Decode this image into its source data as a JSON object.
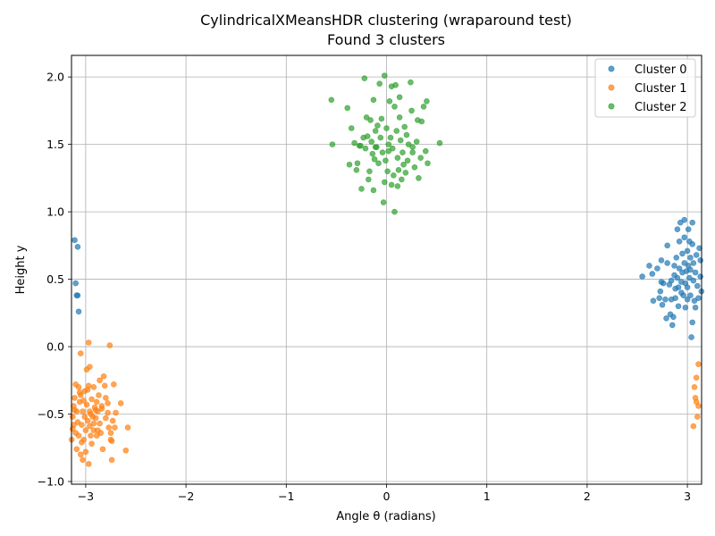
{
  "chart_data": {
    "type": "scatter",
    "title": "CylindricalXMeansHDR clustering (wraparound test)",
    "subtitle": "Found 3 clusters",
    "xlabel": "Angle θ (radians)",
    "ylabel": "Height y",
    "xlim": [
      -3.14159,
      3.14159
    ],
    "ylim": [
      -1.02,
      2.16
    ],
    "xticks": [
      -3,
      -2,
      -1,
      0,
      1,
      2,
      3
    ],
    "yticks": [
      -1.0,
      -0.5,
      0.0,
      0.5,
      1.0,
      1.5,
      2.0
    ],
    "xtick_labels": [
      "−3",
      "−2",
      "−1",
      "0",
      "1",
      "2",
      "3"
    ],
    "ytick_labels": [
      "−1.0",
      "−0.5",
      "0.0",
      "0.5",
      "1.0",
      "1.5",
      "2.0"
    ],
    "grid": true,
    "legend_position": "top-right",
    "series": [
      {
        "name": "Cluster 0",
        "color": "#1f77b4",
        "points": [
          [
            2.55,
            0.52
          ],
          [
            2.62,
            0.6
          ],
          [
            2.65,
            0.54
          ],
          [
            2.66,
            0.34
          ],
          [
            2.7,
            0.58
          ],
          [
            2.72,
            0.36
          ],
          [
            2.73,
            0.41
          ],
          [
            2.74,
            0.64
          ],
          [
            2.74,
            0.48
          ],
          [
            2.75,
            0.31
          ],
          [
            2.76,
            0.47
          ],
          [
            2.78,
            0.35
          ],
          [
            2.79,
            0.21
          ],
          [
            2.8,
            0.62
          ],
          [
            2.8,
            0.75
          ],
          [
            2.82,
            0.46
          ],
          [
            2.83,
            0.24
          ],
          [
            2.84,
            0.49
          ],
          [
            2.84,
            0.35
          ],
          [
            2.85,
            0.16
          ],
          [
            2.86,
            0.22
          ],
          [
            2.87,
            0.53
          ],
          [
            2.87,
            0.6
          ],
          [
            2.88,
            0.43
          ],
          [
            2.88,
            0.36
          ],
          [
            2.89,
            0.66
          ],
          [
            2.9,
            0.87
          ],
          [
            2.9,
            0.51
          ],
          [
            2.91,
            0.44
          ],
          [
            2.91,
            0.3
          ],
          [
            2.92,
            0.78
          ],
          [
            2.92,
            0.58
          ],
          [
            2.93,
            0.92
          ],
          [
            2.94,
            0.48
          ],
          [
            2.94,
            0.4
          ],
          [
            2.95,
            0.69
          ],
          [
            2.95,
            0.55
          ],
          [
            2.96,
            0.38
          ],
          [
            2.97,
            0.81
          ],
          [
            2.97,
            0.62
          ],
          [
            2.97,
            0.94
          ],
          [
            2.98,
            0.47
          ],
          [
            2.98,
            0.29
          ],
          [
            2.99,
            0.56
          ],
          [
            3.0,
            0.71
          ],
          [
            3.0,
            0.44
          ],
          [
            3.0,
            0.35
          ],
          [
            3.01,
            0.87
          ],
          [
            3.01,
            0.6
          ],
          [
            3.02,
            0.51
          ],
          [
            3.02,
            0.78
          ],
          [
            3.03,
            0.66
          ],
          [
            3.03,
            0.57
          ],
          [
            3.03,
            0.38
          ],
          [
            3.04,
            0.07
          ],
          [
            3.05,
            0.92
          ],
          [
            3.05,
            0.18
          ],
          [
            3.05,
            0.76
          ],
          [
            3.06,
            0.49
          ],
          [
            3.06,
            0.62
          ],
          [
            3.07,
            0.34
          ],
          [
            3.08,
            0.29
          ],
          [
            3.08,
            0.55
          ],
          [
            3.09,
            0.68
          ],
          [
            3.1,
            0.45
          ],
          [
            3.11,
            0.36
          ],
          [
            3.12,
            0.73
          ],
          [
            3.13,
            0.64
          ],
          [
            3.13,
            0.52
          ],
          [
            3.14,
            0.41
          ],
          [
            -3.11,
            0.79
          ],
          [
            -3.1,
            0.47
          ],
          [
            -3.09,
            0.38
          ],
          [
            -3.08,
            0.38
          ],
          [
            -3.08,
            0.74
          ],
          [
            -3.07,
            0.26
          ]
        ]
      },
      {
        "name": "Cluster 1",
        "color": "#ff7f0e",
        "points": [
          [
            -3.14,
            -0.69
          ],
          [
            -3.13,
            -0.52
          ],
          [
            -3.13,
            -0.61
          ],
          [
            -3.12,
            -0.58
          ],
          [
            -3.12,
            -0.44
          ],
          [
            -3.11,
            -0.38
          ],
          [
            -3.1,
            -0.64
          ],
          [
            -3.1,
            -0.28
          ],
          [
            -3.09,
            -0.76
          ],
          [
            -3.09,
            -0.48
          ],
          [
            -3.08,
            -0.56
          ],
          [
            -3.07,
            -0.3
          ],
          [
            -3.07,
            -0.66
          ],
          [
            -3.06,
            -0.41
          ],
          [
            -3.05,
            -0.8
          ],
          [
            -3.05,
            -0.05
          ],
          [
            -3.05,
            -0.36
          ],
          [
            -3.04,
            -0.58
          ],
          [
            -3.03,
            -0.48
          ],
          [
            -3.03,
            -0.84
          ],
          [
            -3.02,
            -0.69
          ],
          [
            -3.01,
            -0.33
          ],
          [
            -3.01,
            -0.52
          ],
          [
            -3.0,
            -0.78
          ],
          [
            -3.0,
            -0.62
          ],
          [
            -2.99,
            -0.43
          ],
          [
            -2.99,
            -0.17
          ],
          [
            -2.98,
            -0.55
          ],
          [
            -2.97,
            0.03
          ],
          [
            -2.97,
            -0.87
          ],
          [
            -2.97,
            -0.29
          ],
          [
            -2.96,
            -0.48
          ],
          [
            -2.96,
            -0.15
          ],
          [
            -2.95,
            -0.66
          ],
          [
            -2.94,
            -0.72
          ],
          [
            -2.94,
            -0.39
          ],
          [
            -2.93,
            -0.52
          ],
          [
            -2.92,
            -0.3
          ],
          [
            -2.92,
            -0.62
          ],
          [
            -2.91,
            -0.45
          ],
          [
            -2.9,
            -0.53
          ],
          [
            -2.89,
            -0.41
          ],
          [
            -2.89,
            -0.66
          ],
          [
            -2.88,
            -0.48
          ],
          [
            -2.87,
            -0.36
          ],
          [
            -2.86,
            -0.25
          ],
          [
            -2.86,
            -0.57
          ],
          [
            -2.85,
            -0.64
          ],
          [
            -2.84,
            -0.44
          ],
          [
            -2.83,
            -0.76
          ],
          [
            -2.82,
            -0.22
          ],
          [
            -2.81,
            -0.29
          ],
          [
            -2.8,
            -0.53
          ],
          [
            -2.8,
            -0.38
          ],
          [
            -2.78,
            -0.49
          ],
          [
            -2.77,
            -0.6
          ],
          [
            -2.76,
            0.01
          ],
          [
            -2.75,
            -0.69
          ],
          [
            -2.75,
            -0.64
          ],
          [
            -2.74,
            -0.84
          ],
          [
            -2.73,
            -0.55
          ],
          [
            -2.72,
            -0.28
          ],
          [
            -2.71,
            -0.6
          ],
          [
            -2.7,
            -0.49
          ],
          [
            -2.65,
            -0.42
          ],
          [
            -2.6,
            -0.77
          ],
          [
            -2.58,
            -0.6
          ],
          [
            -3.06,
            -0.34
          ],
          [
            -3.02,
            -0.4
          ],
          [
            -2.98,
            -0.32
          ],
          [
            -2.95,
            -0.5
          ],
          [
            -2.92,
            -0.57
          ],
          [
            -2.9,
            -0.47
          ],
          [
            -2.88,
            -0.62
          ],
          [
            -2.84,
            -0.46
          ],
          [
            -2.78,
            -0.42
          ],
          [
            -2.74,
            -0.7
          ],
          [
            -3.11,
            -0.47
          ],
          [
            -3.04,
            -0.71
          ],
          [
            -2.96,
            -0.59
          ],
          [
            3.11,
            -0.13
          ],
          [
            3.09,
            -0.23
          ],
          [
            3.08,
            -0.38
          ],
          [
            3.07,
            -0.3
          ],
          [
            3.09,
            -0.41
          ],
          [
            3.1,
            -0.52
          ],
          [
            3.11,
            -0.44
          ],
          [
            3.06,
            -0.59
          ]
        ]
      },
      {
        "name": "Cluster 2",
        "color": "#2ca02c",
        "points": [
          [
            -0.55,
            1.83
          ],
          [
            -0.54,
            1.5
          ],
          [
            -0.39,
            1.77
          ],
          [
            -0.37,
            1.35
          ],
          [
            -0.35,
            1.62
          ],
          [
            -0.32,
            1.51
          ],
          [
            -0.3,
            1.31
          ],
          [
            -0.29,
            1.36
          ],
          [
            -0.26,
            1.49
          ],
          [
            -0.25,
            1.17
          ],
          [
            -0.23,
            1.55
          ],
          [
            -0.22,
            1.99
          ],
          [
            -0.21,
            1.47
          ],
          [
            -0.2,
            1.7
          ],
          [
            -0.19,
            1.56
          ],
          [
            -0.18,
            1.24
          ],
          [
            -0.17,
            1.3
          ],
          [
            -0.16,
            1.68
          ],
          [
            -0.15,
            1.52
          ],
          [
            -0.14,
            1.43
          ],
          [
            -0.13,
            1.16
          ],
          [
            -0.13,
            1.83
          ],
          [
            -0.12,
            1.39
          ],
          [
            -0.11,
            1.6
          ],
          [
            -0.1,
            1.48
          ],
          [
            -0.09,
            1.64
          ],
          [
            -0.08,
            1.36
          ],
          [
            -0.07,
            1.95
          ],
          [
            -0.06,
            1.55
          ],
          [
            -0.05,
            1.69
          ],
          [
            -0.04,
            1.44
          ],
          [
            -0.03,
            1.07
          ],
          [
            -0.02,
            2.01
          ],
          [
            -0.02,
            1.22
          ],
          [
            -0.01,
            1.38
          ],
          [
            0.0,
            1.62
          ],
          [
            0.01,
            1.3
          ],
          [
            0.02,
            1.5
          ],
          [
            0.03,
            1.82
          ],
          [
            0.04,
            1.55
          ],
          [
            0.05,
            1.2
          ],
          [
            0.05,
            1.93
          ],
          [
            0.06,
            1.47
          ],
          [
            0.07,
            1.27
          ],
          [
            0.08,
            1.78
          ],
          [
            0.08,
            1.0
          ],
          [
            0.09,
            1.94
          ],
          [
            0.1,
            1.6
          ],
          [
            0.11,
            1.4
          ],
          [
            0.12,
            1.31
          ],
          [
            0.13,
            1.7
          ],
          [
            0.13,
            1.85
          ],
          [
            0.14,
            1.53
          ],
          [
            0.15,
            1.24
          ],
          [
            0.16,
            1.44
          ],
          [
            0.17,
            1.35
          ],
          [
            0.18,
            1.63
          ],
          [
            0.19,
            1.29
          ],
          [
            0.2,
            1.57
          ],
          [
            0.21,
            1.38
          ],
          [
            0.22,
            1.5
          ],
          [
            0.24,
            1.96
          ],
          [
            0.25,
            1.75
          ],
          [
            0.26,
            1.44
          ],
          [
            0.28,
            1.33
          ],
          [
            0.3,
            1.52
          ],
          [
            0.31,
            1.68
          ],
          [
            0.32,
            1.25
          ],
          [
            0.34,
            1.4
          ],
          [
            0.35,
            1.67
          ],
          [
            0.37,
            1.78
          ],
          [
            0.39,
            1.45
          ],
          [
            0.4,
            1.82
          ],
          [
            0.41,
            1.36
          ],
          [
            0.53,
            1.51
          ],
          [
            -0.27,
            1.49
          ],
          [
            -0.11,
            1.48
          ],
          [
            0.02,
            1.45
          ],
          [
            0.11,
            1.19
          ],
          [
            0.26,
            1.48
          ]
        ]
      }
    ]
  }
}
